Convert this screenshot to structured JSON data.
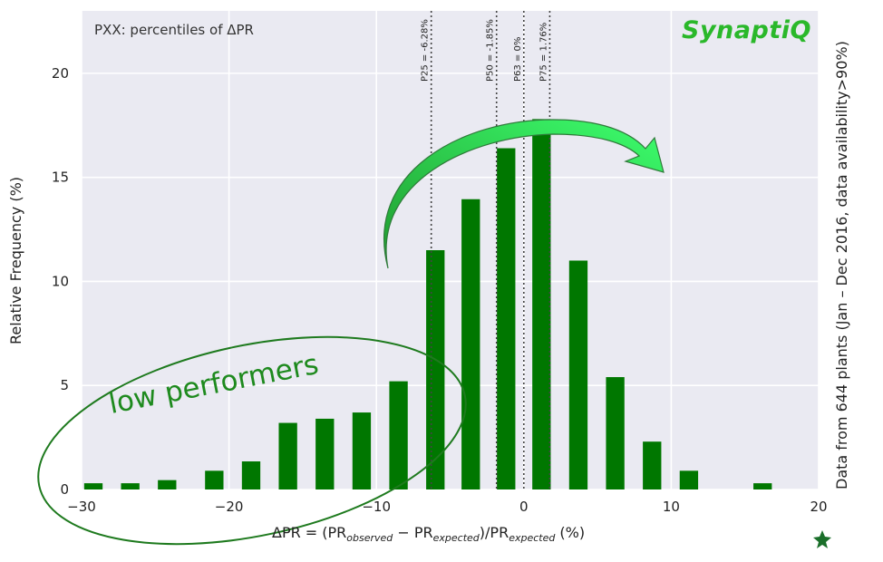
{
  "chart_data": {
    "type": "bar",
    "title": "PXX: percentiles of ΔPR",
    "xlabel": "ΔPR = (PR_observed − PR_expected)/PR_expected (%)",
    "xlabel_parts": {
      "lhs": "ΔPR = (PR",
      "sub_observed": "observed",
      "minus": " − PR",
      "sub_expected": "expected",
      "slash": ")/PR",
      "sub_expected2": "expected",
      "unit": " (%)"
    },
    "ylabel": "Relative Frequency (%)",
    "right_note": "Data from 644 plants (Jan – Dec 2016, data availability>90%)",
    "xlim": [
      -30,
      20
    ],
    "ylim": [
      0,
      23
    ],
    "xticks": [
      -30,
      -20,
      -10,
      0,
      10,
      20
    ],
    "xtick_labels": [
      "−30",
      "−20",
      "−10",
      "0",
      "10",
      "20"
    ],
    "yticks": [
      0,
      5,
      10,
      15,
      20
    ],
    "ytick_labels": [
      "0",
      "5",
      "10",
      "15",
      "20"
    ],
    "grid": true,
    "bar_width": 1.25,
    "x": [
      -29.2,
      -26.7,
      -24.2,
      -21.0,
      -18.5,
      -16.0,
      -13.5,
      -11.0,
      -8.5,
      -6.0,
      -3.6,
      -1.2,
      1.2,
      3.7,
      6.2,
      8.7,
      11.2,
      16.2
    ],
    "values": [
      0.3,
      0.3,
      0.45,
      0.9,
      1.35,
      3.2,
      3.4,
      3.7,
      5.2,
      11.5,
      13.95,
      16.4,
      17.8,
      11.0,
      5.4,
      2.3,
      0.9,
      0.3
    ],
    "bar_color": "#007700",
    "percentile_lines": [
      {
        "x": -6.28,
        "label": "P25 = -6.28%"
      },
      {
        "x": -1.85,
        "label": "P50 = -1.85%"
      },
      {
        "x": 0.0,
        "label": "P63 = 0%"
      },
      {
        "x": 1.76,
        "label": "P75 = 1.76%"
      }
    ],
    "annotations": {
      "low_performers": "low performers"
    }
  },
  "branding": {
    "logo_text": "SynaptiQ"
  },
  "colors": {
    "plot_bg": "#eaeaf2",
    "grid": "#ffffff",
    "bar": "#007700",
    "arrow_start": "#22aa33",
    "arrow_end": "#33ff66",
    "ellipse": "#1e7a1e",
    "logo": "#2ab82a"
  }
}
